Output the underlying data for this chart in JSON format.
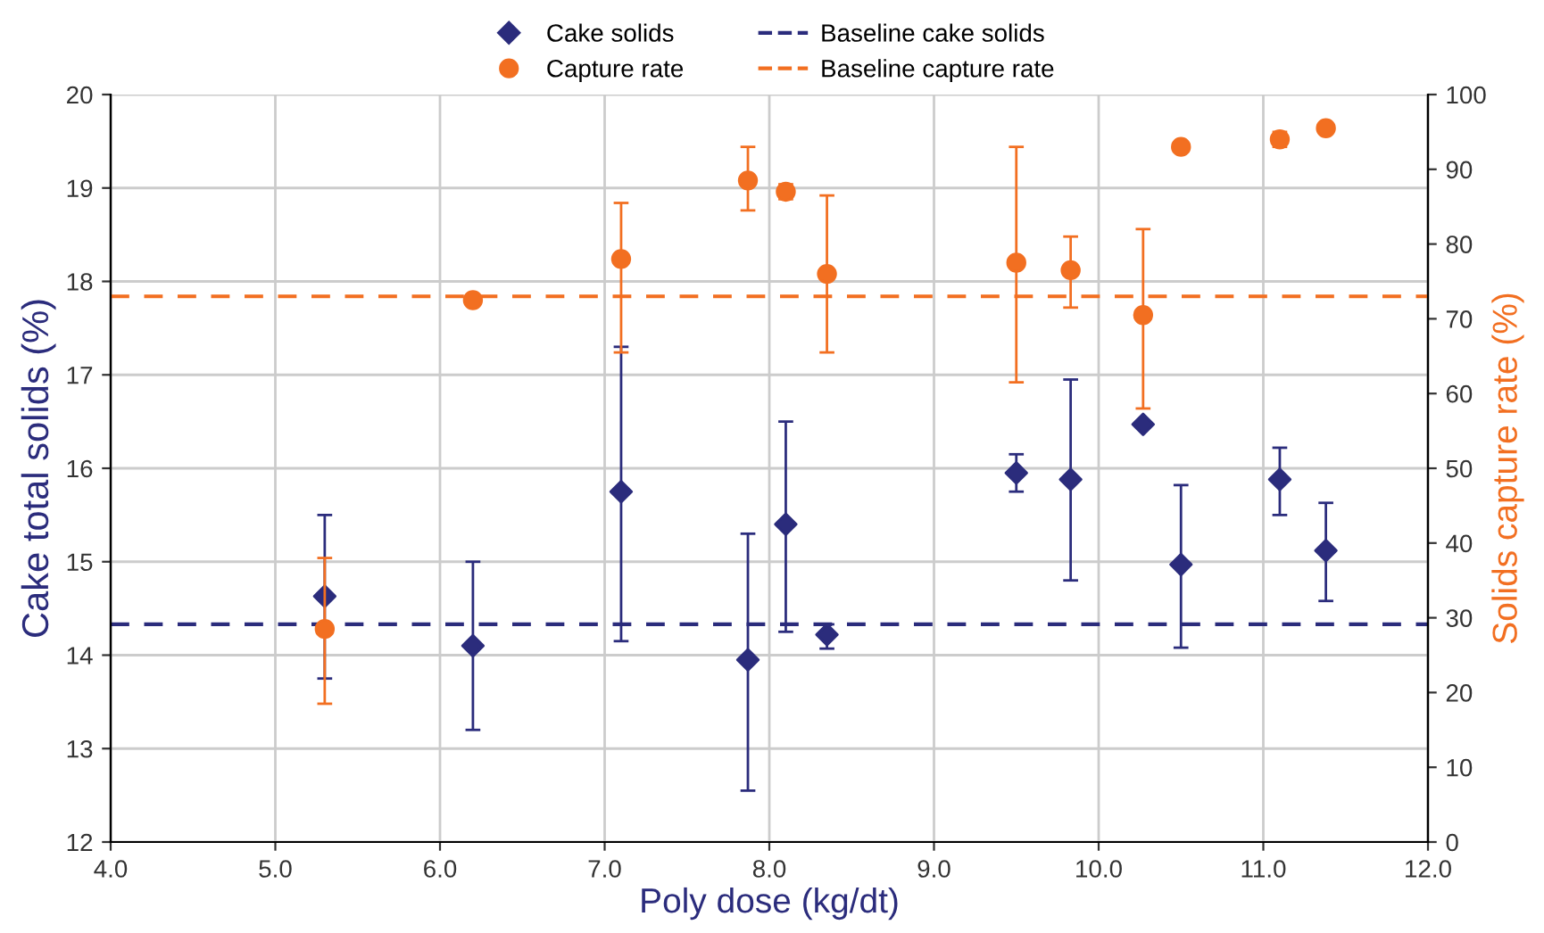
{
  "chart_data": {
    "type": "scatter",
    "xlabel": "Poly dose (kg/dt)",
    "ylabel": "Cake total solids (%)",
    "y2label": "Solids capture rate (%)",
    "xlim": [
      4.0,
      12.0
    ],
    "xticks": [
      {
        "value": 4,
        "label": "4.0"
      },
      {
        "value": 5,
        "label": "5.0"
      },
      {
        "value": 6,
        "label": "6.0"
      },
      {
        "value": 7,
        "label": "7.0"
      },
      {
        "value": 8,
        "label": "8.0"
      },
      {
        "value": 9,
        "label": "9.0"
      },
      {
        "value": 10,
        "label": "10.0"
      },
      {
        "value": 11,
        "label": "11.0"
      },
      {
        "value": 12,
        "label": "12.0"
      }
    ],
    "ylim": [
      12,
      20
    ],
    "yticks": [
      12,
      13,
      14,
      15,
      16,
      17,
      18,
      19,
      20
    ],
    "y2lim": [
      0,
      100
    ],
    "y2ticks": [
      0,
      10,
      20,
      30,
      40,
      50,
      60,
      70,
      80,
      90,
      100
    ],
    "grid": true,
    "legend": "top",
    "series": [
      {
        "name": "Cake solids",
        "color": "#2b2c7c",
        "marker": "diamond",
        "x": [
          5.3,
          6.2,
          7.1,
          7.87,
          8.1,
          8.35,
          9.5,
          9.83,
          10.27,
          10.5,
          11.1,
          11.38
        ],
        "values": [
          14.63,
          14.1,
          15.75,
          13.95,
          15.4,
          14.22,
          15.95,
          15.88,
          16.47,
          14.97,
          15.88,
          15.12
        ],
        "errors": [
          [
            13.75,
            15.5
          ],
          [
            13.2,
            15.0
          ],
          [
            14.15,
            17.3
          ],
          [
            12.55,
            15.3
          ],
          [
            14.25,
            16.5
          ],
          [
            14.07,
            14.33
          ],
          [
            15.75,
            16.15
          ],
          [
            14.8,
            16.95
          ],
          null,
          [
            14.08,
            15.82
          ],
          [
            15.5,
            16.22
          ],
          [
            14.58,
            15.63
          ]
        ]
      },
      {
        "name": "Capture rate",
        "color": "#f26f21",
        "marker": "circle",
        "axis": "y2",
        "x": [
          5.3,
          6.2,
          7.1,
          7.87,
          8.1,
          8.35,
          9.5,
          9.83,
          10.27,
          10.5,
          11.1,
          11.38
        ],
        "values": [
          28.5,
          72.5,
          78,
          88.5,
          87,
          76,
          77.5,
          76.5,
          70.5,
          93,
          94,
          95.5
        ],
        "errors": [
          [
            18.5,
            38
          ],
          null,
          [
            65.5,
            85.5
          ],
          [
            84.5,
            93
          ],
          [
            86,
            88
          ],
          [
            65.5,
            86.5
          ],
          [
            61.5,
            93
          ],
          [
            71.5,
            81
          ],
          [
            58,
            82
          ],
          null,
          [
            93,
            95
          ],
          null
        ]
      }
    ],
    "ref_lines": [
      {
        "axis": "y",
        "value": 14.33,
        "label": "Baseline cake solids",
        "color": "#2b2c7c",
        "line_style": "dashed"
      },
      {
        "axis": "y2",
        "value": 73,
        "label": "Baseline capture rate",
        "color": "#f26f21",
        "line_style": "dashed"
      }
    ]
  }
}
